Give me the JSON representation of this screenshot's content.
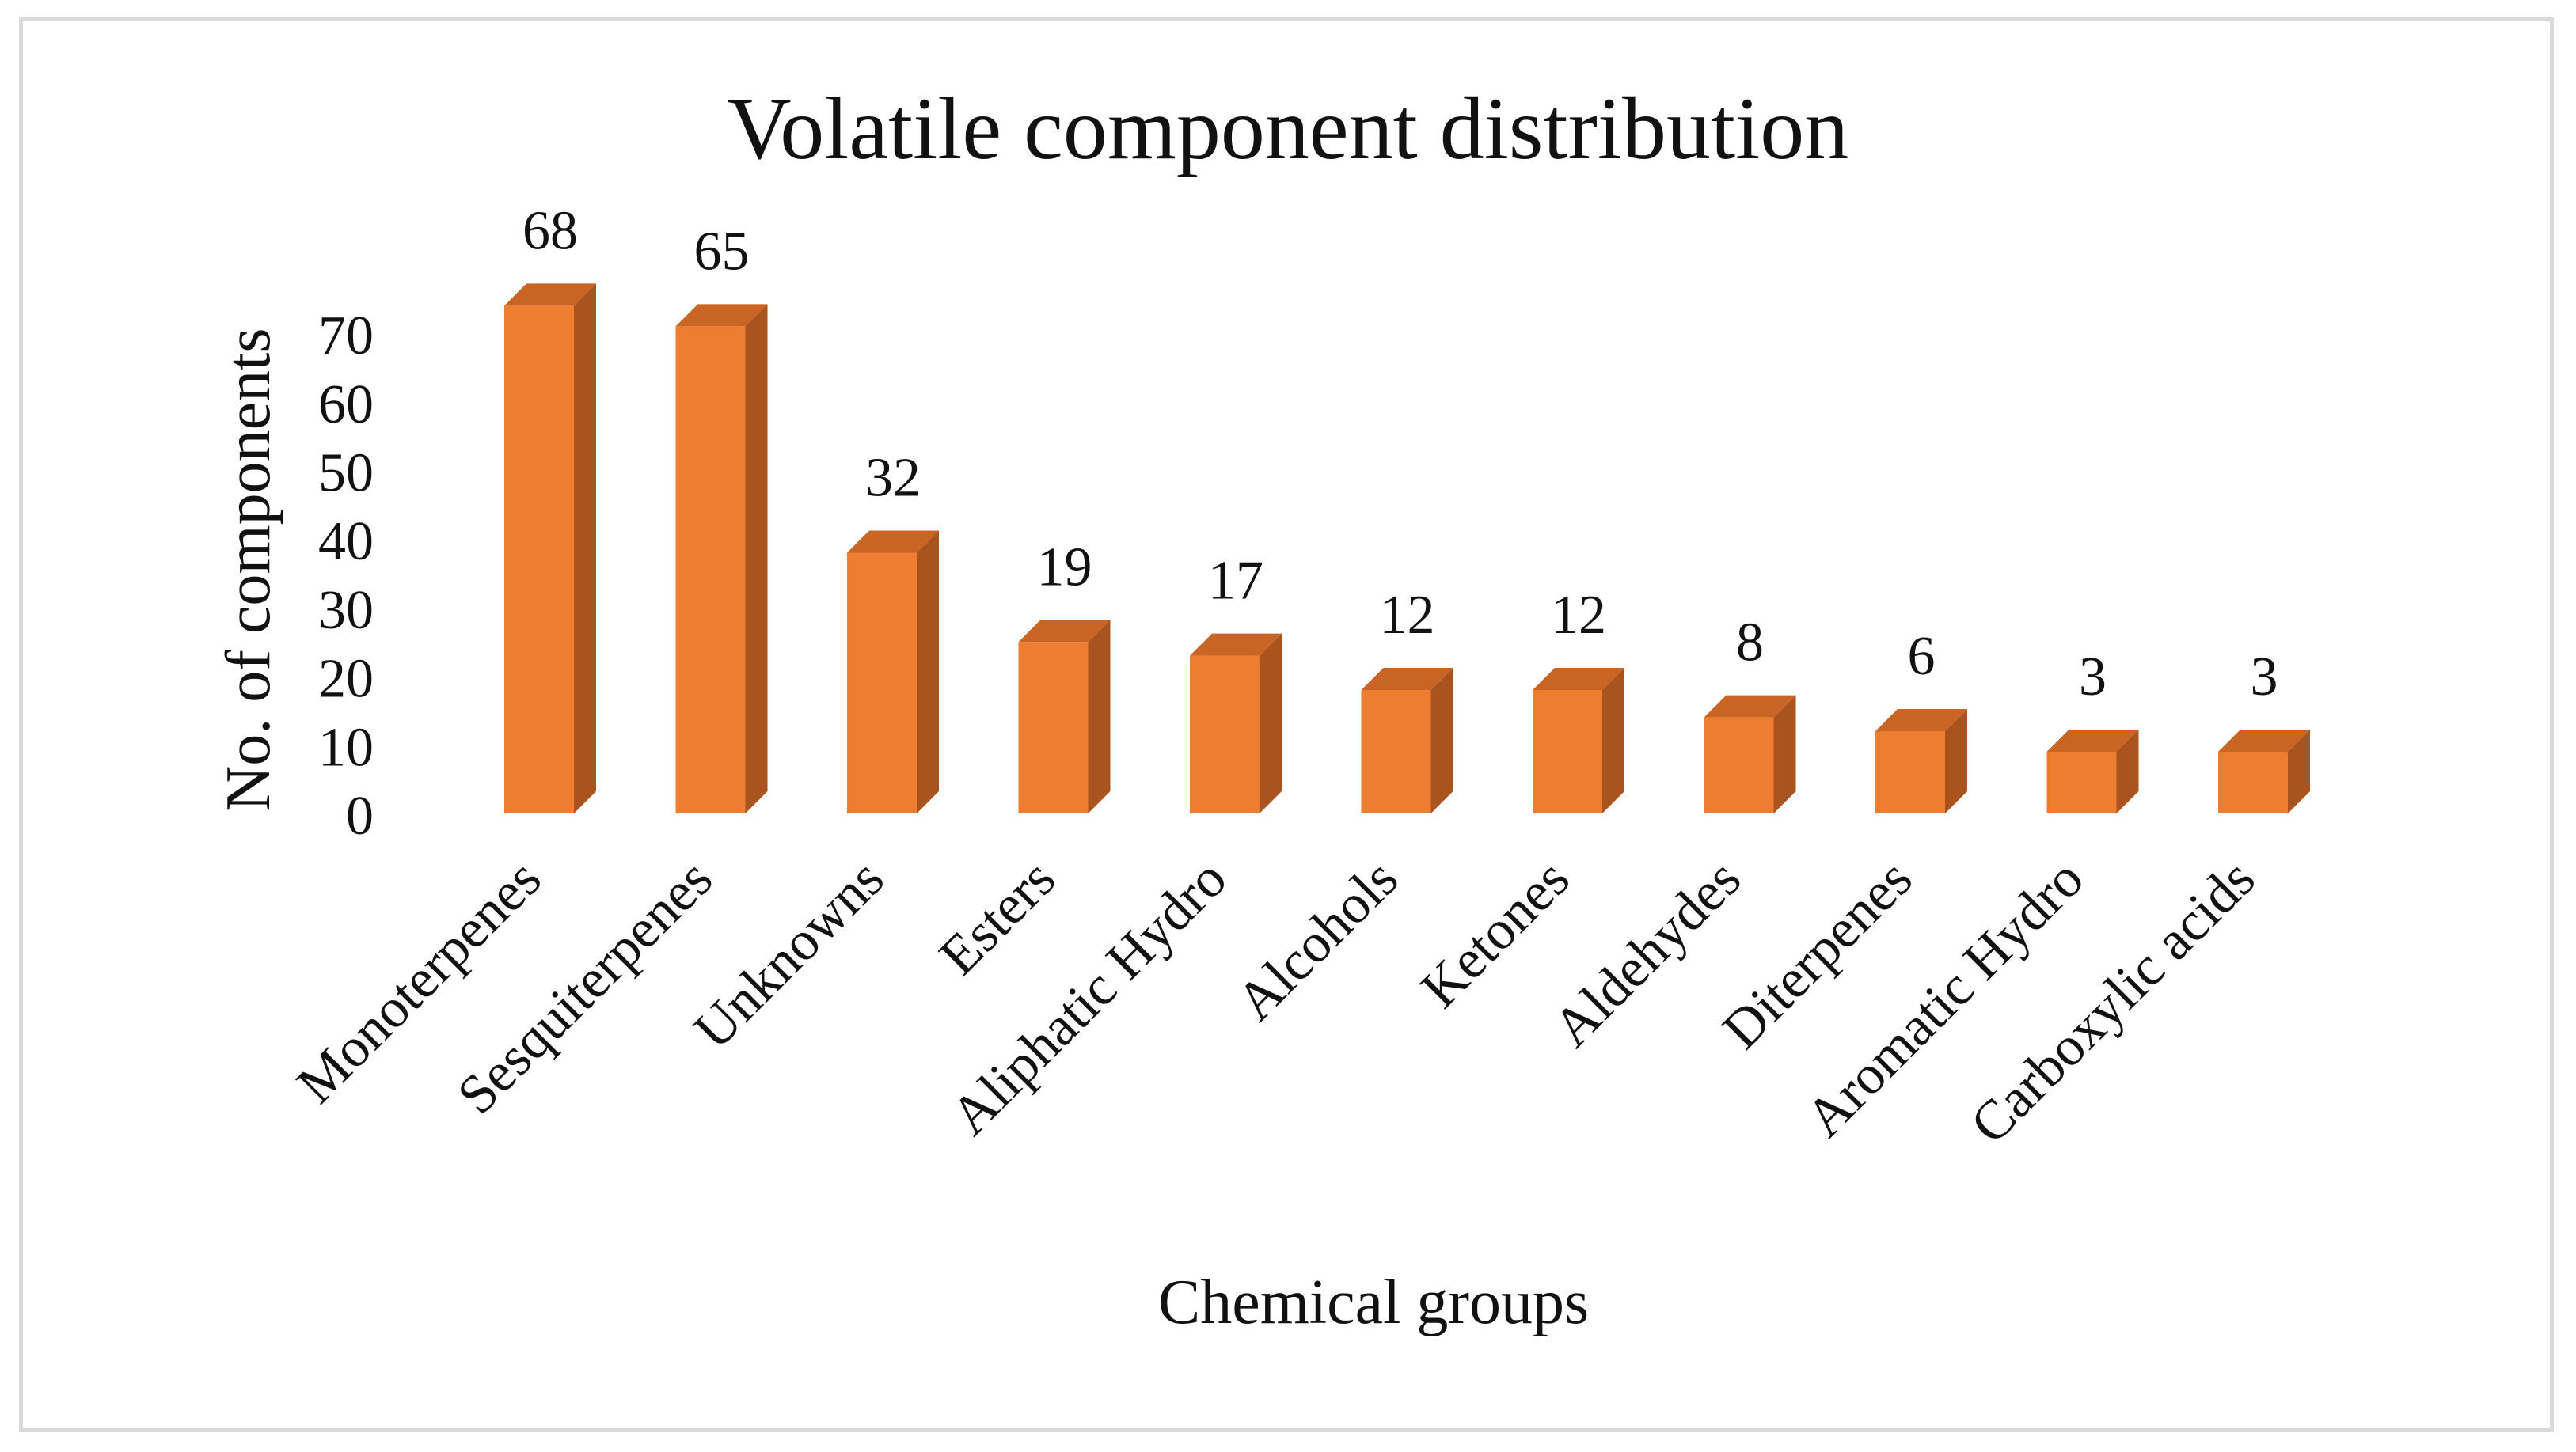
{
  "colors": {
    "bar_front": "#ED7D31",
    "bar_side": "#A9541F",
    "bar_top": "#C86424",
    "text": "#111111",
    "frame": "#D9D9D9"
  },
  "chart_data": {
    "type": "bar",
    "style": "3d-column",
    "title": "Volatile component distribution",
    "xlabel": "Chemical groups",
    "ylabel": "No. of components",
    "ylim": [
      0,
      70
    ],
    "yticks": [
      0,
      10,
      20,
      30,
      40,
      50,
      60,
      70
    ],
    "grid": false,
    "legend": "none",
    "categories": [
      "Monoterpenes",
      "Sesquiterpenes",
      "Unknowns",
      "Esters",
      "Aliphatic Hydro",
      "Alcohols",
      "Ketones",
      "Aldehydes",
      "Diterpenes",
      "Aromatic Hydro",
      "Carboxylic acids"
    ],
    "values": [
      68,
      65,
      32,
      19,
      17,
      12,
      12,
      8,
      6,
      3,
      3
    ]
  }
}
